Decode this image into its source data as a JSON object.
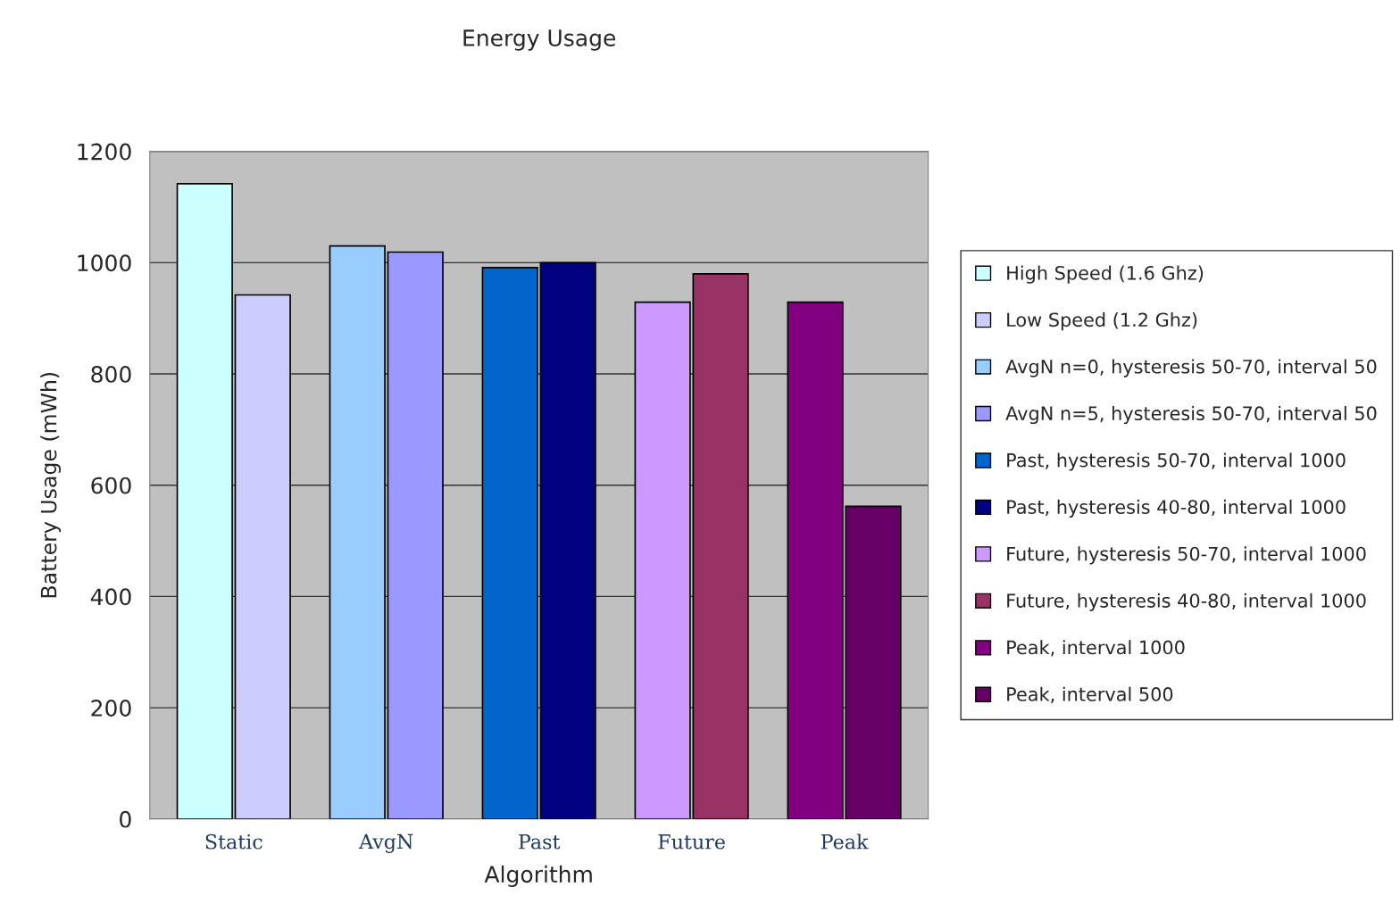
{
  "chart_data": {
    "type": "bar",
    "title": "Energy Usage",
    "xlabel": "Algorithm",
    "ylabel": "Battery Usage (mWh)",
    "categories": [
      "Static",
      "AvgN",
      "Past",
      "Future",
      "Peak"
    ],
    "series": [
      {
        "name": "High Speed (1.6 Ghz)",
        "color": "#ccffff",
        "values": [
          1142,
          null,
          null,
          null,
          null
        ]
      },
      {
        "name": "Low Speed (1.2 Ghz)",
        "color": "#ccccff",
        "values": [
          942,
          null,
          null,
          null,
          null
        ]
      },
      {
        "name": "AvgN n=0, hysteresis 50-70, interval 50",
        "color": "#99ccff",
        "values": [
          null,
          1030,
          null,
          null,
          null
        ]
      },
      {
        "name": "AvgN n=5, hysteresis 50-70, interval 50",
        "color": "#9999ff",
        "values": [
          null,
          1019,
          null,
          null,
          null
        ]
      },
      {
        "name": "Past, hysteresis 50-70, interval 1000",
        "color": "#0066cc",
        "values": [
          null,
          null,
          991,
          null,
          null
        ]
      },
      {
        "name": "Past, hysteresis 40-80, interval 1000",
        "color": "#000080",
        "values": [
          null,
          null,
          1000,
          null,
          null
        ]
      },
      {
        "name": "Future, hysteresis 50-70, interval 1000",
        "color": "#cc99ff",
        "values": [
          null,
          null,
          null,
          929,
          null
        ]
      },
      {
        "name": "Future, hysteresis 40-80, interval 1000",
        "color": "#993366",
        "values": [
          null,
          null,
          null,
          980,
          null
        ]
      },
      {
        "name": "Peak, interval 1000",
        "color": "#800080",
        "values": [
          null,
          null,
          null,
          null,
          929
        ]
      },
      {
        "name": "Peak, interval 500",
        "color": "#660066",
        "values": [
          null,
          null,
          null,
          null,
          562
        ]
      }
    ],
    "ylim": [
      0,
      1200
    ],
    "yticks": [
      0,
      200,
      400,
      600,
      800,
      1000,
      1200
    ],
    "grid": "y",
    "legend": "right"
  }
}
